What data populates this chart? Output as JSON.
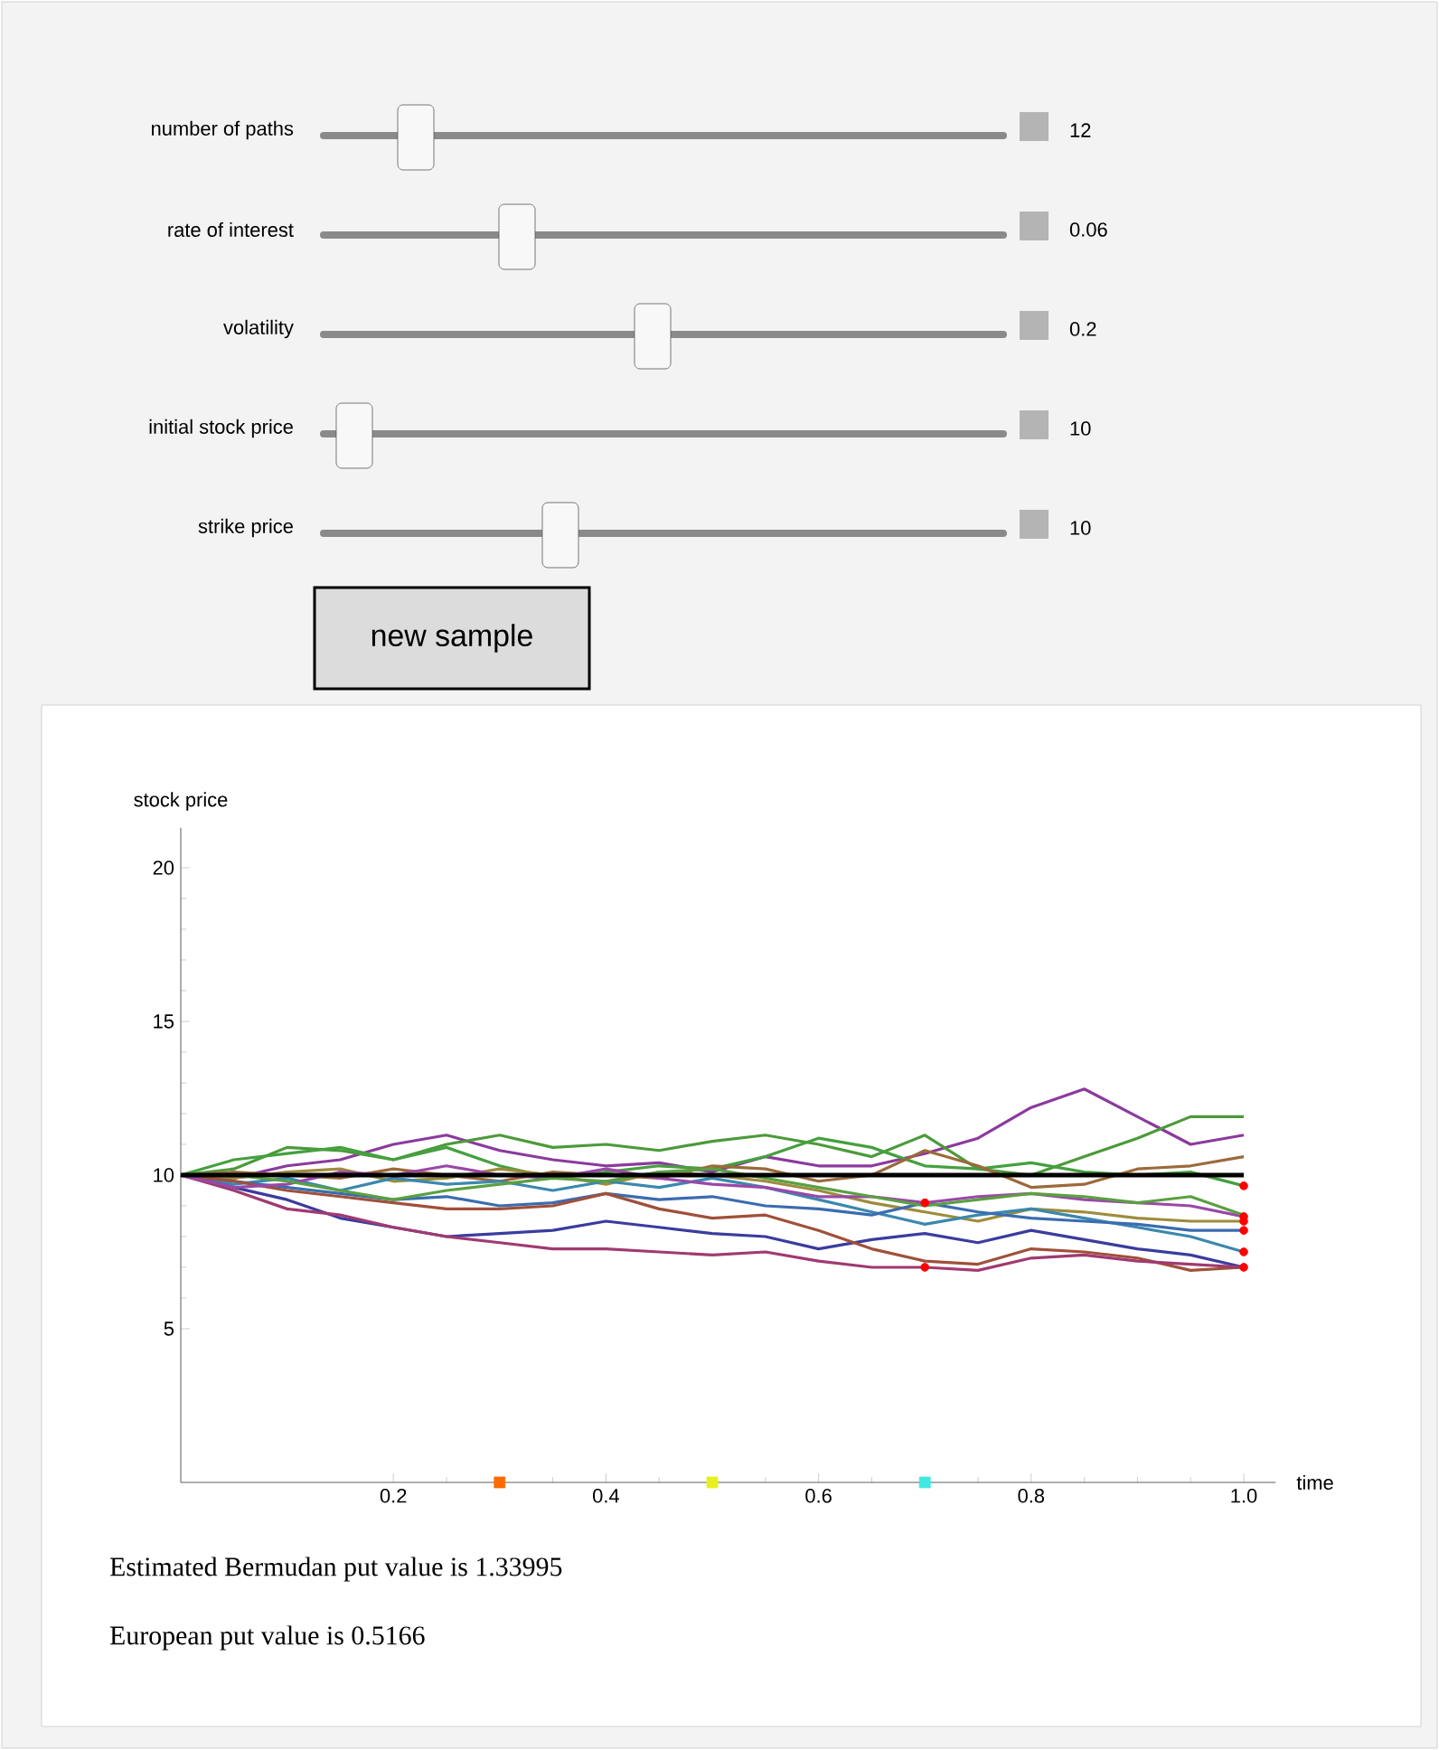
{
  "chart_data": {
    "type": "line",
    "xlabel": "time",
    "ylabel": "stock price",
    "xlim": [
      0,
      1.03
    ],
    "ylim": [
      0,
      21.3
    ],
    "xticks": [
      0.2,
      0.4,
      0.6,
      0.8,
      {
        "value": 1,
        "label": "1.0"
      }
    ],
    "yticks": [
      5,
      10,
      15,
      20
    ],
    "marker": "none",
    "line_style": "solid",
    "x": [
      0,
      0.05,
      0.1,
      0.15,
      0.2,
      0.25,
      0.3,
      0.35,
      0.4,
      0.45,
      0.5,
      0.55,
      0.6,
      0.65,
      0.7,
      0.75,
      0.8,
      0.85,
      0.9,
      0.95,
      1.0
    ],
    "series": [
      {
        "color": "#8b3a9e",
        "values": [
          10,
          9.9,
          10.3,
          10.5,
          11.0,
          11.3,
          10.8,
          10.5,
          10.3,
          10.4,
          10.1,
          10.6,
          10.3,
          10.3,
          10.7,
          11.2,
          12.2,
          12.8,
          11.9,
          11.0,
          11.3
        ]
      },
      {
        "color": "#4c9a3a",
        "values": [
          10,
          10.2,
          10.9,
          10.8,
          10.5,
          11.0,
          11.3,
          10.9,
          11.0,
          10.8,
          11.1,
          11.3,
          11.0,
          10.6,
          11.3,
          10.2,
          10.0,
          10.6,
          11.2,
          11.9,
          11.9
        ]
      },
      {
        "color": "#45a040",
        "values": [
          10,
          10.5,
          10.7,
          10.9,
          10.5,
          10.9,
          10.3,
          9.9,
          10.1,
          10.3,
          10.2,
          10.6,
          11.2,
          10.9,
          10.3,
          10.2,
          10.4,
          10.1,
          10.0,
          10.1,
          9.65
        ]
      },
      {
        "color": "#9b6a3a",
        "values": [
          10,
          10.1,
          10.0,
          9.9,
          10.2,
          10.0,
          9.8,
          10.1,
          10.0,
          9.9,
          10.3,
          10.2,
          9.8,
          10.0,
          10.8,
          10.3,
          9.6,
          9.7,
          10.2,
          10.3,
          10.6
        ]
      },
      {
        "color": "#9e8c3c",
        "values": [
          10,
          9.9,
          10.1,
          10.2,
          9.8,
          9.9,
          10.2,
          10.0,
          9.7,
          10.1,
          10.0,
          9.8,
          9.5,
          9.1,
          8.8,
          8.5,
          8.9,
          8.8,
          8.6,
          8.5,
          8.5
        ]
      },
      {
        "color": "#3a88ae",
        "values": [
          10,
          9.7,
          9.9,
          9.5,
          9.9,
          9.7,
          9.8,
          9.5,
          9.8,
          9.6,
          9.9,
          9.6,
          9.2,
          8.8,
          8.4,
          8.7,
          8.9,
          8.6,
          8.3,
          8.0,
          7.5
        ]
      },
      {
        "color": "#3a6cb0",
        "values": [
          10,
          9.8,
          9.6,
          9.4,
          9.2,
          9.3,
          9.0,
          9.1,
          9.4,
          9.2,
          9.3,
          9.0,
          8.9,
          8.7,
          9.1,
          8.8,
          8.6,
          8.5,
          8.4,
          8.2,
          8.2
        ]
      },
      {
        "color": "#3a3c9e",
        "values": [
          10,
          9.6,
          9.2,
          8.6,
          8.3,
          8.0,
          8.1,
          8.2,
          8.5,
          8.3,
          8.1,
          8.0,
          7.6,
          7.9,
          8.1,
          7.8,
          8.2,
          7.9,
          7.6,
          7.4,
          7.0
        ]
      },
      {
        "color": "#a0503a",
        "values": [
          10,
          9.8,
          9.5,
          9.3,
          9.1,
          8.9,
          8.9,
          9.0,
          9.4,
          8.9,
          8.6,
          8.7,
          8.2,
          7.6,
          7.2,
          7.1,
          7.6,
          7.5,
          7.3,
          6.9,
          7.0
        ]
      },
      {
        "color": "#a03a70",
        "values": [
          10,
          9.5,
          8.9,
          8.7,
          8.3,
          8.0,
          7.8,
          7.6,
          7.6,
          7.5,
          7.4,
          7.5,
          7.2,
          7.0,
          7.0,
          6.9,
          7.3,
          7.4,
          7.2,
          7.1,
          7.0
        ]
      },
      {
        "color": "#9a48a8",
        "values": [
          10,
          9.6,
          9.7,
          10.1,
          10.0,
          10.3,
          10.0,
          9.9,
          10.2,
          9.9,
          9.7,
          9.6,
          9.3,
          9.3,
          9.1,
          9.3,
          9.4,
          9.2,
          9.1,
          9.0,
          8.65
        ]
      },
      {
        "color": "#5aa040",
        "values": [
          10,
          10.0,
          9.8,
          9.5,
          9.2,
          9.5,
          9.7,
          9.9,
          9.8,
          10.1,
          10.2,
          9.9,
          9.6,
          9.3,
          9.0,
          9.2,
          9.4,
          9.3,
          9.1,
          9.3,
          8.7
        ]
      },
      {
        "type": "scatter",
        "marker": "circle",
        "color": "#ff0000",
        "x": [
          0.7,
          0.7,
          1,
          1,
          1,
          1,
          1,
          1
        ],
        "values": [
          9.1,
          7.0,
          9.65,
          8.65,
          8.5,
          8.2,
          7.5,
          7.0
        ]
      },
      {
        "type": "scatter",
        "marker": "square",
        "color": "#ff6a00",
        "x": [
          0.3
        ],
        "values": [
          0
        ]
      },
      {
        "type": "scatter",
        "marker": "square",
        "color": "#e8f020",
        "x": [
          0.5
        ],
        "values": [
          0
        ]
      },
      {
        "type": "scatter",
        "marker": "square",
        "color": "#40e8e0",
        "x": [
          0.7
        ],
        "values": [
          0
        ]
      }
    ],
    "ref_lines": [
      {
        "axis": "y",
        "value": 10,
        "color": "#000000"
      }
    ],
    "annotations": [
      "number of paths",
      "rate of interest",
      "volatility",
      "initial stock price",
      "strike price",
      "12",
      "0.06",
      "0.2",
      "10",
      "10",
      "new sample",
      "Estimated Bermudan put value is 1.33995",
      "European put value is 0.5166"
    ]
  }
}
